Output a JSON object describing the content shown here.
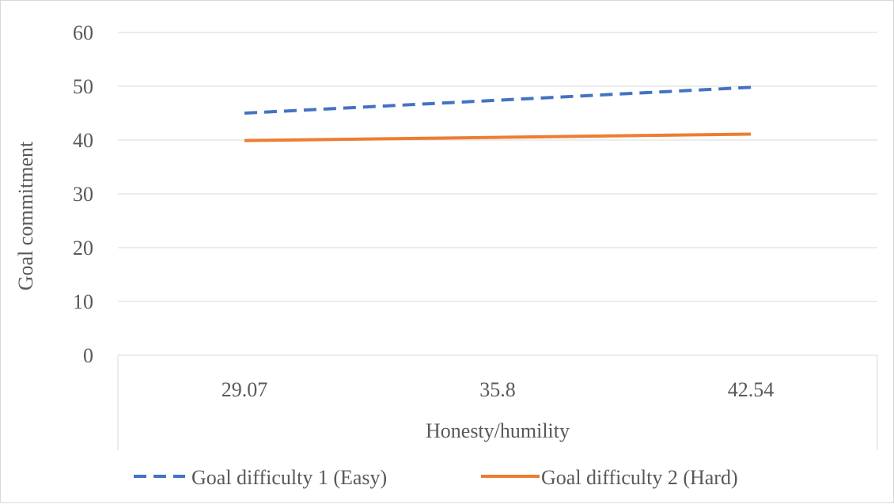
{
  "chart_data": {
    "type": "line",
    "categories": [
      "29.07",
      "35.8",
      "42.54"
    ],
    "series": [
      {
        "name": "Goal difficulty 1 (Easy)",
        "values": [
          45.0,
          47.4,
          49.8
        ],
        "color": "#4472C4",
        "line_style": "dashed"
      },
      {
        "name": "Goal difficulty 2 (Hard)",
        "values": [
          39.9,
          40.5,
          41.1
        ],
        "color": "#ED7D31",
        "line_style": "solid"
      }
    ],
    "xlabel": "Honesty/humility",
    "ylabel": "Goal commitment",
    "ylim": [
      0,
      60
    ],
    "yticks": [
      "0",
      "10",
      "20",
      "30",
      "40",
      "50",
      "60"
    ],
    "grid": "horizontal",
    "legend_position": "bottom"
  }
}
